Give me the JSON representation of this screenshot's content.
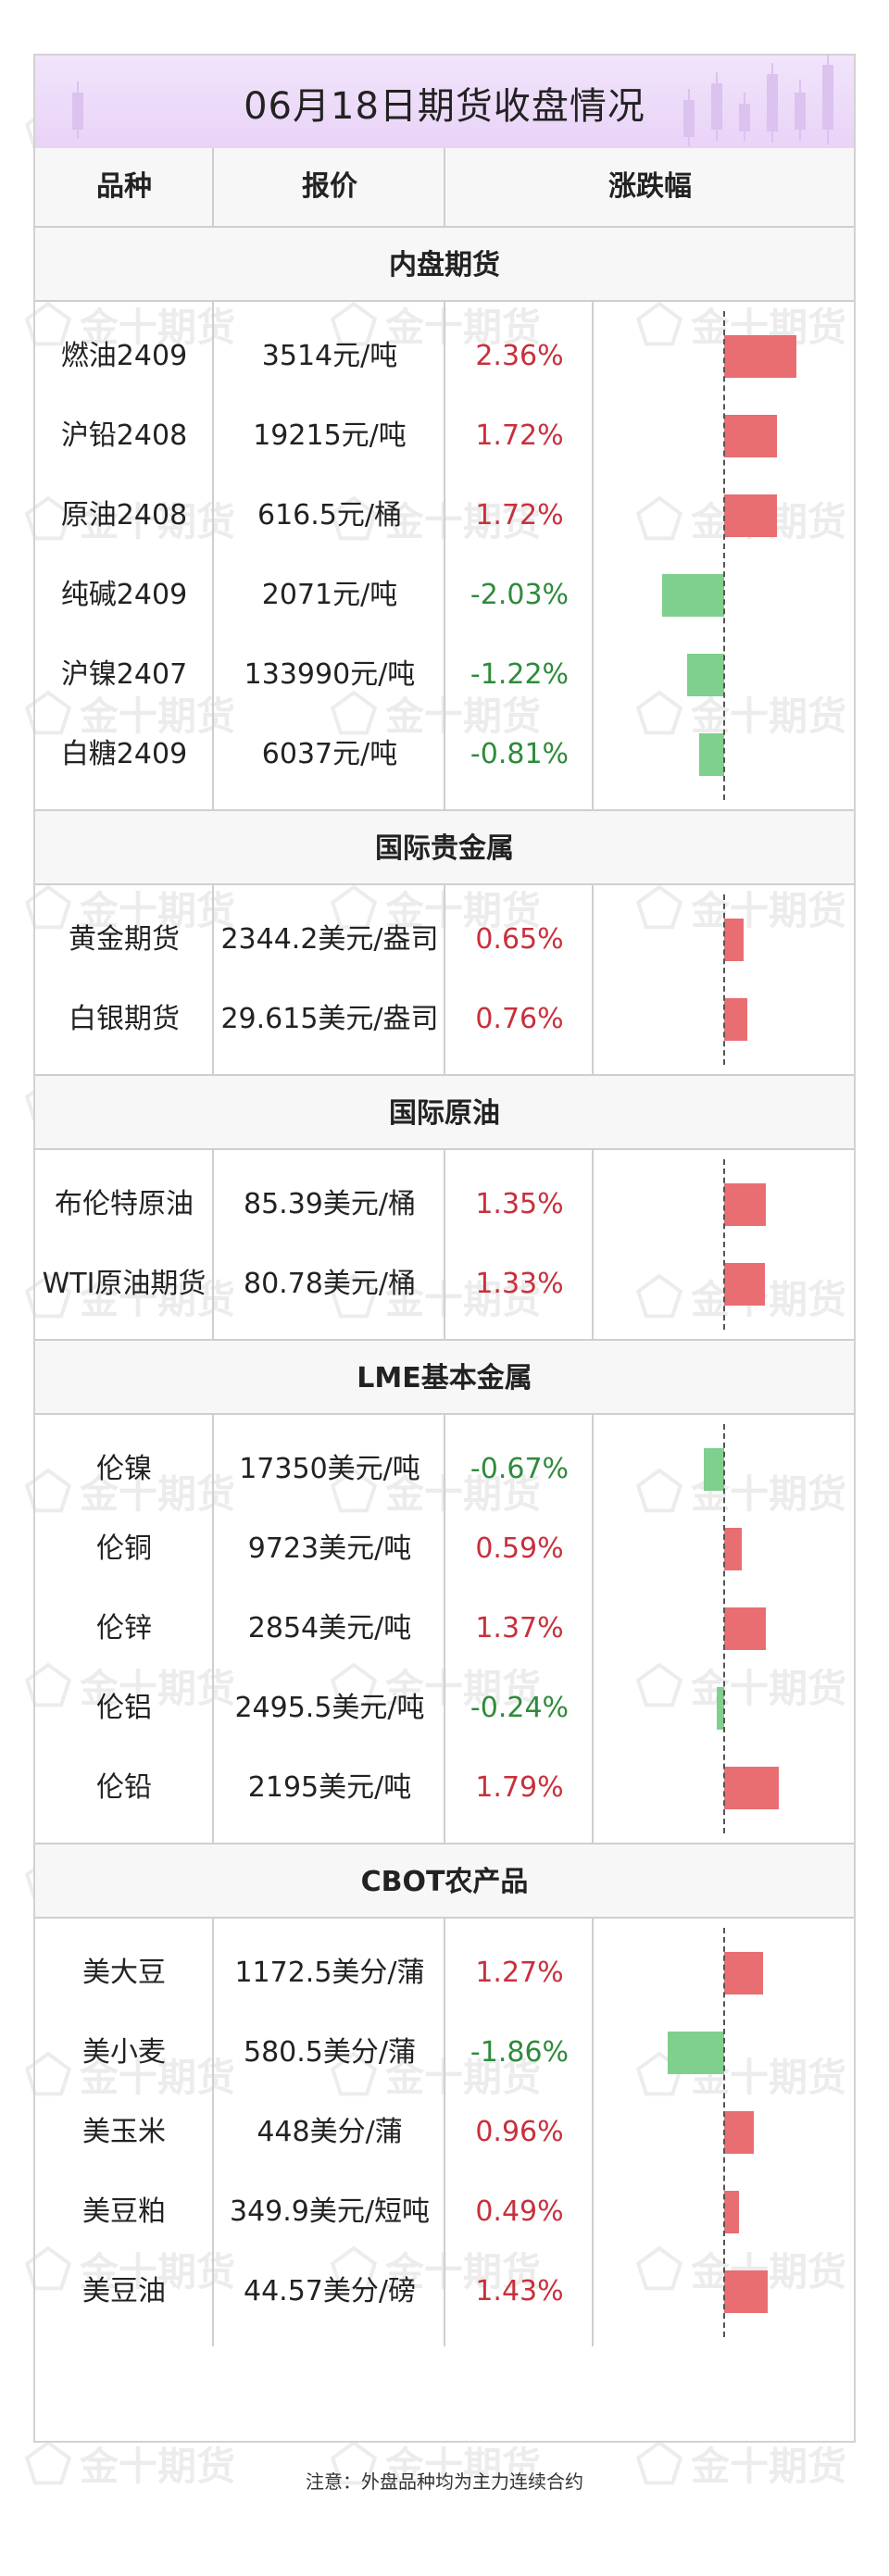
{
  "title": "06月18日期货收盘情况",
  "headers": {
    "name": "品种",
    "price": "报价",
    "change": "涨跌幅"
  },
  "watermark": "金十期货",
  "colors": {
    "up": "#e86e72",
    "down": "#7fcf8e",
    "up_text": "#c8303c",
    "down_text": "#2e8b3a",
    "title_bg": "#ecdaf8"
  },
  "sections": [
    {
      "title": "内盘期货",
      "rows": [
        {
          "name": "燃油2409",
          "price": "3514元/吨",
          "change": "2.36%",
          "value": 2.36
        },
        {
          "name": "沪铅2408",
          "price": "19215元/吨",
          "change": "1.72%",
          "value": 1.72
        },
        {
          "name": "原油2408",
          "price": "616.5元/桶",
          "change": "1.72%",
          "value": 1.72
        },
        {
          "name": "纯碱2409",
          "price": "2071元/吨",
          "change": "-2.03%",
          "value": -2.03
        },
        {
          "name": "沪镍2407",
          "price": "133990元/吨",
          "change": "-1.22%",
          "value": -1.22
        },
        {
          "name": "白糖2409",
          "price": "6037元/吨",
          "change": "-0.81%",
          "value": -0.81
        }
      ]
    },
    {
      "title": "国际贵金属",
      "rows": [
        {
          "name": "黄金期货",
          "price": "2344.2美元/盎司",
          "change": "0.65%",
          "value": 0.65
        },
        {
          "name": "白银期货",
          "price": "29.615美元/盎司",
          "change": "0.76%",
          "value": 0.76
        }
      ]
    },
    {
      "title": "国际原油",
      "rows": [
        {
          "name": "布伦特原油",
          "price": "85.39美元/桶",
          "change": "1.35%",
          "value": 1.35
        },
        {
          "name": "WTI原油期货",
          "price": "80.78美元/桶",
          "change": "1.33%",
          "value": 1.33
        }
      ]
    },
    {
      "title": "LME基本金属",
      "rows": [
        {
          "name": "伦镍",
          "price": "17350美元/吨",
          "change": "-0.67%",
          "value": -0.67
        },
        {
          "name": "伦铜",
          "price": "9723美元/吨",
          "change": "0.59%",
          "value": 0.59
        },
        {
          "name": "伦锌",
          "price": "2854美元/吨",
          "change": "1.37%",
          "value": 1.37
        },
        {
          "name": "伦铝",
          "price": "2495.5美元/吨",
          "change": "-0.24%",
          "value": -0.24
        },
        {
          "name": "伦铅",
          "price": "2195美元/吨",
          "change": "1.79%",
          "value": 1.79
        }
      ]
    },
    {
      "title": "CBOT农产品",
      "rows": [
        {
          "name": "美大豆",
          "price": "1172.5美分/蒲",
          "change": "1.27%",
          "value": 1.27
        },
        {
          "name": "美小麦",
          "price": "580.5美分/蒲",
          "change": "-1.86%",
          "value": -1.86
        },
        {
          "name": "美玉米",
          "price": "448美分/蒲",
          "change": "0.96%",
          "value": 0.96
        },
        {
          "name": "美豆粕",
          "price": "349.9美元/短吨",
          "change": "0.49%",
          "value": 0.49
        },
        {
          "name": "美豆油",
          "price": "44.57美分/磅",
          "change": "1.43%",
          "value": 1.43
        }
      ]
    }
  ],
  "note": "注意：外盘品种均为主力连续合约"
}
